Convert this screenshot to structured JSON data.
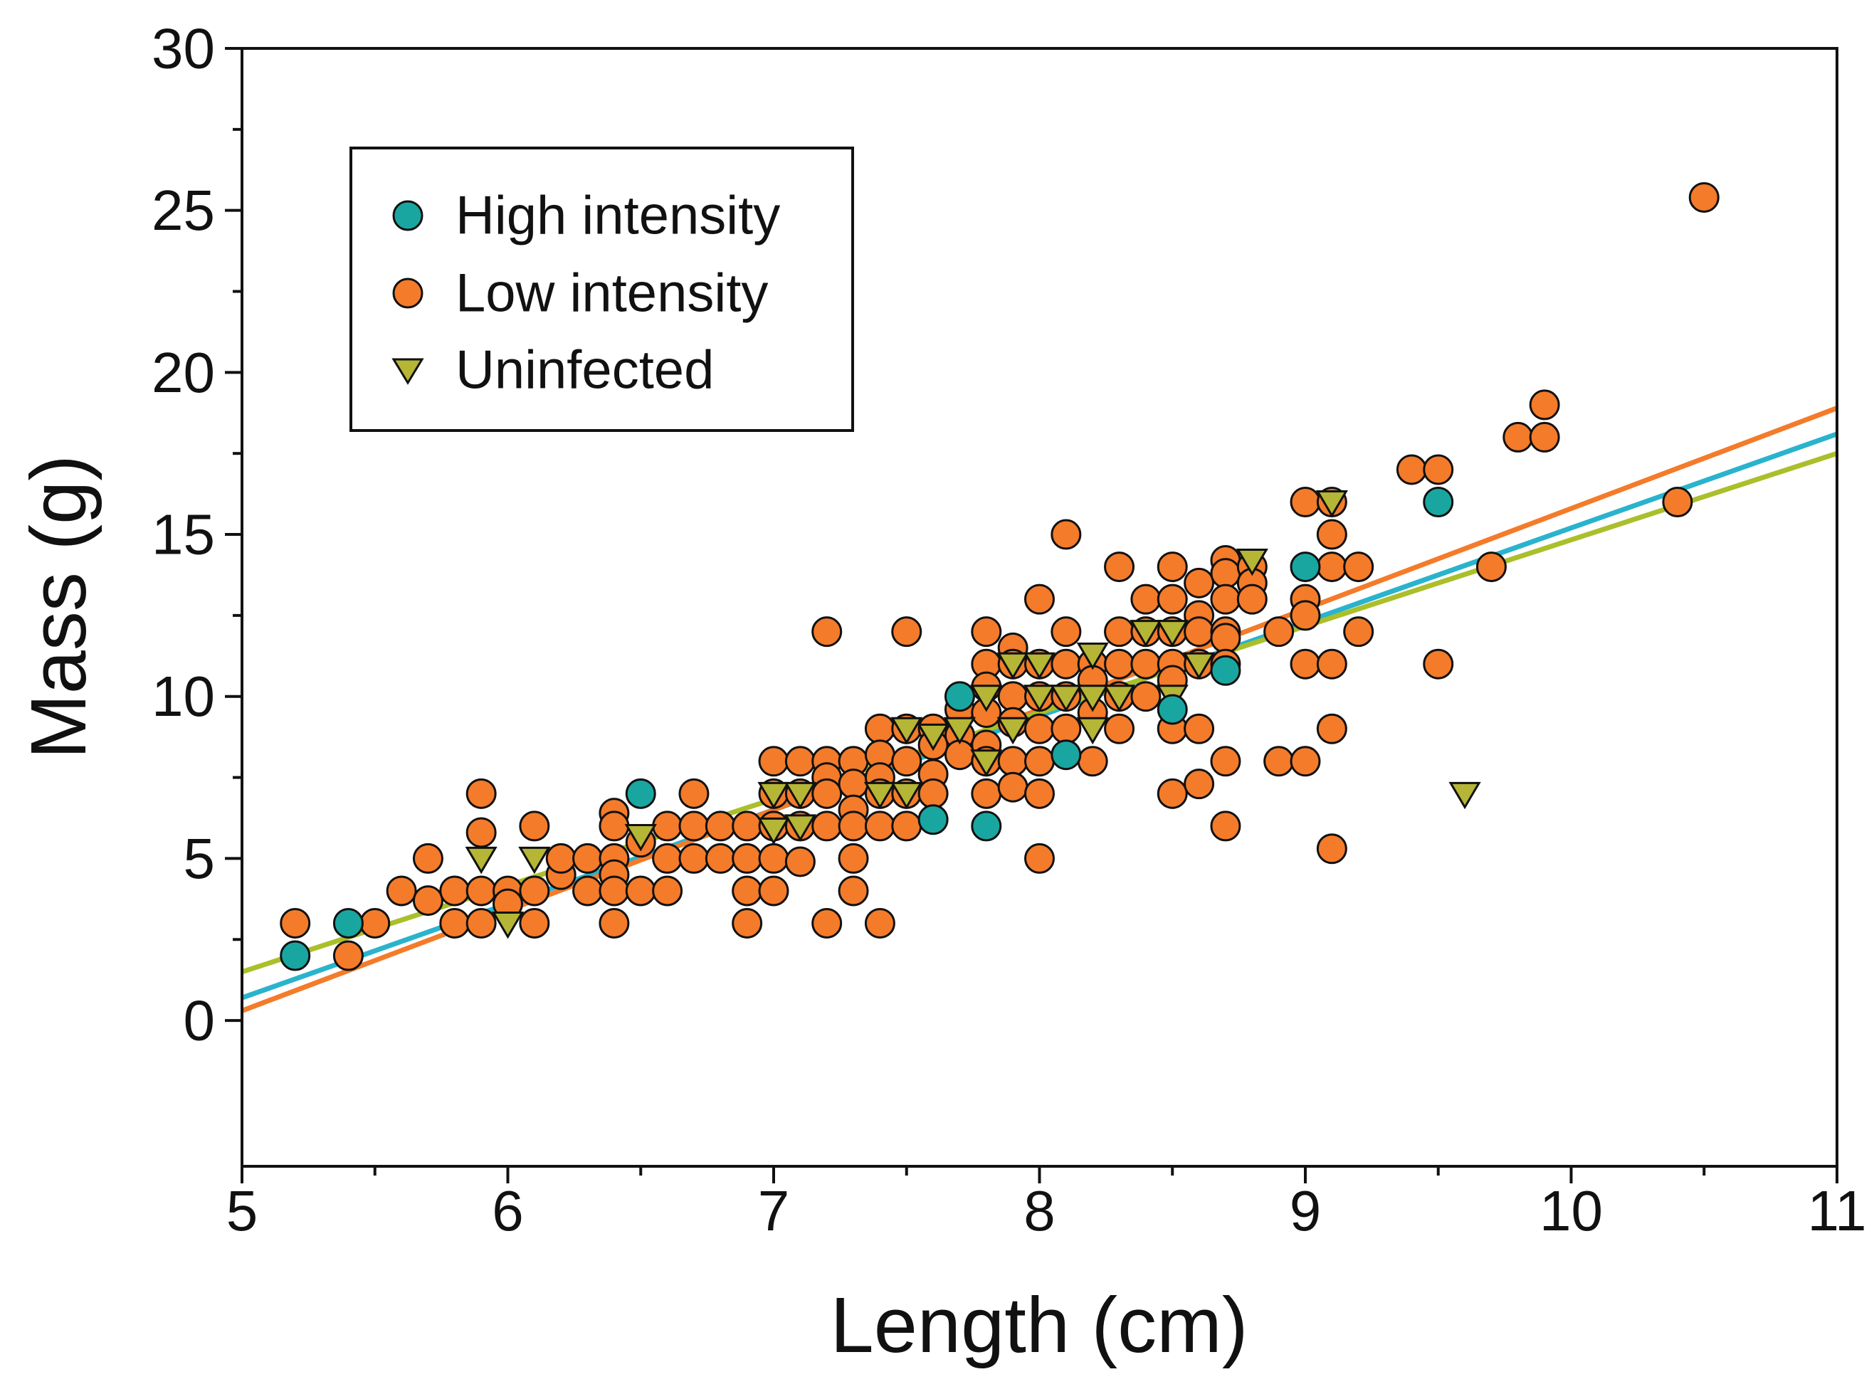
{
  "chart_data": {
    "type": "scatter",
    "title": "",
    "xlabel": "Length (cm)",
    "ylabel": "Mass (g)",
    "xlim": [
      5,
      11
    ],
    "ylim": [
      -4.5,
      30
    ],
    "xticks": [
      5,
      6,
      7,
      8,
      9,
      10,
      11
    ],
    "yticks": [
      0,
      5,
      10,
      15,
      20,
      25,
      30
    ],
    "grid": false,
    "legend_position": "top-left",
    "colors": {
      "high": "#1aa6a0",
      "low": "#f47b2a",
      "uninfected": "#b5b536",
      "marker_edge": "#111111",
      "fit_high": "#2ab3cc",
      "fit_low": "#f47b2a",
      "fit_uninfected": "#aabf2a"
    },
    "series": [
      {
        "name": "High intensity",
        "key": "high",
        "marker": "circle",
        "points": [
          [
            5.2,
            2
          ],
          [
            5.4,
            3
          ],
          [
            6.5,
            7
          ],
          [
            7.6,
            6.2
          ],
          [
            7.7,
            10
          ],
          [
            7.8,
            6
          ],
          [
            8.1,
            8.2
          ],
          [
            8.5,
            9.6
          ],
          [
            8.7,
            10.8
          ],
          [
            9.0,
            14
          ],
          [
            9.5,
            16
          ]
        ]
      },
      {
        "name": "Low intensity",
        "key": "low",
        "marker": "circle",
        "points": [
          [
            5.2,
            3
          ],
          [
            5.4,
            2
          ],
          [
            5.5,
            3
          ],
          [
            5.6,
            4
          ],
          [
            5.7,
            5
          ],
          [
            5.7,
            3.7
          ],
          [
            5.8,
            4
          ],
          [
            5.8,
            3
          ],
          [
            5.9,
            7
          ],
          [
            5.9,
            5.8
          ],
          [
            5.9,
            4
          ],
          [
            5.9,
            3
          ],
          [
            6.0,
            4
          ],
          [
            6.0,
            3.6
          ],
          [
            6.1,
            6
          ],
          [
            6.1,
            4
          ],
          [
            6.1,
            3
          ],
          [
            6.2,
            4.5
          ],
          [
            6.2,
            5
          ],
          [
            6.3,
            4
          ],
          [
            6.3,
            5
          ],
          [
            6.4,
            6.4
          ],
          [
            6.4,
            6
          ],
          [
            6.4,
            5
          ],
          [
            6.4,
            4.5
          ],
          [
            6.4,
            4
          ],
          [
            6.4,
            3
          ],
          [
            6.5,
            5.5
          ],
          [
            6.5,
            4
          ],
          [
            6.6,
            6
          ],
          [
            6.6,
            5
          ],
          [
            6.6,
            4
          ],
          [
            6.7,
            7
          ],
          [
            6.7,
            6
          ],
          [
            6.7,
            5
          ],
          [
            6.8,
            6
          ],
          [
            6.8,
            5
          ],
          [
            6.9,
            6
          ],
          [
            6.9,
            5
          ],
          [
            6.9,
            4
          ],
          [
            6.9,
            3
          ],
          [
            7.0,
            8
          ],
          [
            7.0,
            7
          ],
          [
            7.0,
            6
          ],
          [
            7.0,
            5
          ],
          [
            7.0,
            4
          ],
          [
            7.1,
            8
          ],
          [
            7.1,
            7
          ],
          [
            7.1,
            6
          ],
          [
            7.1,
            4.9
          ],
          [
            7.2,
            12
          ],
          [
            7.2,
            8
          ],
          [
            7.2,
            7.5
          ],
          [
            7.2,
            7
          ],
          [
            7.2,
            6
          ],
          [
            7.2,
            3
          ],
          [
            7.3,
            8
          ],
          [
            7.3,
            7.3
          ],
          [
            7.3,
            6.5
          ],
          [
            7.3,
            6
          ],
          [
            7.3,
            5
          ],
          [
            7.3,
            4
          ],
          [
            7.4,
            9
          ],
          [
            7.4,
            8.2
          ],
          [
            7.4,
            7.5
          ],
          [
            7.4,
            7
          ],
          [
            7.4,
            6
          ],
          [
            7.4,
            3
          ],
          [
            7.5,
            12
          ],
          [
            7.5,
            9
          ],
          [
            7.5,
            8
          ],
          [
            7.5,
            7
          ],
          [
            7.5,
            6
          ],
          [
            7.6,
            9
          ],
          [
            7.6,
            8.5
          ],
          [
            7.6,
            7.6
          ],
          [
            7.6,
            7
          ],
          [
            7.7,
            9.6
          ],
          [
            7.7,
            8.8
          ],
          [
            7.7,
            8.2
          ],
          [
            7.8,
            12
          ],
          [
            7.8,
            11
          ],
          [
            7.8,
            10.3
          ],
          [
            7.8,
            9.5
          ],
          [
            7.8,
            8.5
          ],
          [
            7.8,
            8
          ],
          [
            7.8,
            7
          ],
          [
            7.9,
            11.5
          ],
          [
            7.9,
            11
          ],
          [
            7.9,
            10
          ],
          [
            7.9,
            9.2
          ],
          [
            7.9,
            8
          ],
          [
            7.9,
            7.2
          ],
          [
            8.0,
            13
          ],
          [
            8.0,
            11
          ],
          [
            8.0,
            10
          ],
          [
            8.0,
            9
          ],
          [
            8.0,
            8
          ],
          [
            8.0,
            7
          ],
          [
            8.0,
            5
          ],
          [
            8.1,
            15
          ],
          [
            8.1,
            12
          ],
          [
            8.1,
            11
          ],
          [
            8.1,
            10
          ],
          [
            8.1,
            9
          ],
          [
            8.2,
            11
          ],
          [
            8.2,
            10.5
          ],
          [
            8.2,
            9.5
          ],
          [
            8.2,
            8
          ],
          [
            8.3,
            14
          ],
          [
            8.3,
            12
          ],
          [
            8.3,
            11
          ],
          [
            8.3,
            10
          ],
          [
            8.3,
            9
          ],
          [
            8.4,
            13
          ],
          [
            8.4,
            12
          ],
          [
            8.4,
            11
          ],
          [
            8.4,
            10
          ],
          [
            8.5,
            14
          ],
          [
            8.5,
            13
          ],
          [
            8.5,
            12
          ],
          [
            8.5,
            11
          ],
          [
            8.5,
            10.5
          ],
          [
            8.5,
            9
          ],
          [
            8.5,
            7
          ],
          [
            8.6,
            13.5
          ],
          [
            8.6,
            12.5
          ],
          [
            8.6,
            12
          ],
          [
            8.6,
            11
          ],
          [
            8.6,
            9
          ],
          [
            8.6,
            7.3
          ],
          [
            8.7,
            14.2
          ],
          [
            8.7,
            13.8
          ],
          [
            8.7,
            13
          ],
          [
            8.7,
            12
          ],
          [
            8.7,
            11.8
          ],
          [
            8.7,
            11
          ],
          [
            8.7,
            8
          ],
          [
            8.7,
            6
          ],
          [
            8.8,
            14
          ],
          [
            8.8,
            13.5
          ],
          [
            8.8,
            13
          ],
          [
            8.9,
            12
          ],
          [
            8.9,
            8
          ],
          [
            9.0,
            16
          ],
          [
            9.0,
            13
          ],
          [
            9.0,
            12.5
          ],
          [
            9.0,
            11
          ],
          [
            9.0,
            8
          ],
          [
            9.1,
            16
          ],
          [
            9.1,
            15
          ],
          [
            9.1,
            14
          ],
          [
            9.1,
            11
          ],
          [
            9.1,
            9
          ],
          [
            9.1,
            5.3
          ],
          [
            9.2,
            14
          ],
          [
            9.2,
            12
          ],
          [
            9.4,
            17
          ],
          [
            9.5,
            17
          ],
          [
            9.5,
            11
          ],
          [
            9.7,
            14
          ],
          [
            9.8,
            18
          ],
          [
            9.9,
            19
          ],
          [
            9.9,
            18
          ],
          [
            10.4,
            16
          ],
          [
            10.5,
            25.4
          ]
        ]
      },
      {
        "name": "Uninfected",
        "key": "uninfected",
        "marker": "triangle-down",
        "points": [
          [
            5.9,
            5
          ],
          [
            6.0,
            3
          ],
          [
            6.1,
            5
          ],
          [
            6.5,
            5.7
          ],
          [
            7.0,
            7
          ],
          [
            7.0,
            5.9
          ],
          [
            7.1,
            7
          ],
          [
            7.1,
            6
          ],
          [
            7.4,
            7
          ],
          [
            7.5,
            9
          ],
          [
            7.5,
            7
          ],
          [
            7.6,
            8.8
          ],
          [
            7.7,
            9
          ],
          [
            7.8,
            10
          ],
          [
            7.8,
            8
          ],
          [
            7.9,
            11
          ],
          [
            7.9,
            9
          ],
          [
            8.0,
            11
          ],
          [
            8.0,
            10
          ],
          [
            8.1,
            10
          ],
          [
            8.2,
            11.3
          ],
          [
            8.2,
            10
          ],
          [
            8.2,
            9
          ],
          [
            8.3,
            10
          ],
          [
            8.4,
            12
          ],
          [
            8.5,
            12
          ],
          [
            8.5,
            10
          ],
          [
            8.6,
            11
          ],
          [
            8.8,
            14.2
          ],
          [
            9.1,
            16
          ],
          [
            9.6,
            7
          ]
        ]
      }
    ],
    "fit_lines": [
      {
        "series": "High intensity",
        "x": [
          5,
          11
        ],
        "y": [
          0.7,
          18.1
        ]
      },
      {
        "series": "Low intensity",
        "x": [
          5,
          11
        ],
        "y": [
          0.3,
          18.9
        ]
      },
      {
        "series": "Uninfected",
        "x": [
          5,
          11
        ],
        "y": [
          1.5,
          17.5
        ]
      }
    ]
  }
}
